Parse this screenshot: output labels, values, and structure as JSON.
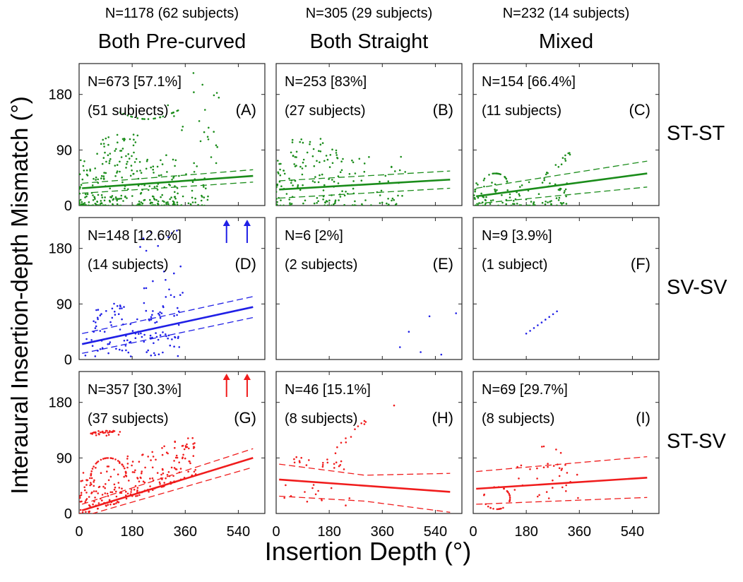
{
  "chart_data": {
    "type": "scatter",
    "xlabel": "Insertion Depth (°)",
    "ylabel": "Interaural Insertion-depth Mismatch (°)",
    "xlim": [
      0,
      630
    ],
    "ylim": [
      0,
      230
    ],
    "xticks": [
      0,
      180,
      360,
      540
    ],
    "yticks": [
      0,
      90,
      180
    ],
    "grid": false,
    "columns": [
      {
        "title": "Both Pre-curved",
        "count": "N=1178 (62 subjects)"
      },
      {
        "title": "Both Straight",
        "count": "N=305 (29 subjects)"
      },
      {
        "title": "Mixed",
        "count": "N=232 (14 subjects)"
      }
    ],
    "rows": [
      {
        "label": "ST-ST",
        "color": "#1a8c1a"
      },
      {
        "label": "SV-SV",
        "color": "#1f1fe6"
      },
      {
        "label": "ST-SV",
        "color": "#f01c1c"
      }
    ],
    "panels": [
      {
        "letter": "(A)",
        "n_text": "N=673 [57.1%]",
        "subjects_text": "(51 subjects)",
        "n": 673,
        "pct": 57.1,
        "subjects": 51,
        "fit": [
          [
            10,
            28
          ],
          [
            590,
            48
          ]
        ],
        "ci_upper": [
          [
            10,
            36
          ],
          [
            590,
            58
          ]
        ],
        "ci_lower": [
          [
            10,
            20
          ],
          [
            590,
            38
          ]
        ],
        "up_arrows": []
      },
      {
        "letter": "(B)",
        "n_text": "N=253 [83%]",
        "subjects_text": "(27 subjects)",
        "n": 253,
        "pct": 83,
        "subjects": 27,
        "fit": [
          [
            10,
            26
          ],
          [
            590,
            42
          ]
        ],
        "ci_upper": [
          [
            10,
            40
          ],
          [
            590,
            56
          ]
        ],
        "ci_lower": [
          [
            10,
            12
          ],
          [
            590,
            28
          ]
        ],
        "up_arrows": []
      },
      {
        "letter": "(C)",
        "n_text": "N=154 [66.4%]",
        "subjects_text": "(11 subjects)",
        "n": 154,
        "pct": 66.4,
        "subjects": 11,
        "fit": [
          [
            10,
            15
          ],
          [
            590,
            52
          ]
        ],
        "ci_upper": [
          [
            10,
            28
          ],
          [
            590,
            72
          ]
        ],
        "ci_lower": [
          [
            10,
            3
          ],
          [
            590,
            30
          ]
        ],
        "up_arrows": []
      },
      {
        "letter": "(D)",
        "n_text": "N=148 [12.6%]",
        "subjects_text": "(14 subjects)",
        "n": 148,
        "pct": 12.6,
        "subjects": 14,
        "fit": [
          [
            10,
            25
          ],
          [
            590,
            85
          ]
        ],
        "ci_upper": [
          [
            10,
            42
          ],
          [
            590,
            102
          ]
        ],
        "ci_lower": [
          [
            10,
            10
          ],
          [
            590,
            68
          ]
        ],
        "up_arrows": [
          500,
          570
        ]
      },
      {
        "letter": "(E)",
        "n_text": "N=6 [2%]",
        "subjects_text": "(2 subjects)",
        "n": 6,
        "pct": 2,
        "subjects": 2,
        "fit": null,
        "ci_upper": null,
        "ci_lower": null,
        "up_arrows": []
      },
      {
        "letter": "(F)",
        "n_text": "N=9 [3.9%]",
        "subjects_text": "(1 subject)",
        "n": 9,
        "pct": 3.9,
        "subjects": 1,
        "fit": null,
        "ci_upper": null,
        "ci_lower": null,
        "up_arrows": []
      },
      {
        "letter": "(G)",
        "n_text": "N=357 [30.3%]",
        "subjects_text": "(37 subjects)",
        "n": 357,
        "pct": 30.3,
        "subjects": 37,
        "fit": [
          [
            10,
            5
          ],
          [
            590,
            90
          ]
        ],
        "ci_upper": [
          [
            10,
            15
          ],
          [
            590,
            105
          ]
        ],
        "ci_lower": [
          [
            10,
            -5
          ],
          [
            590,
            75
          ]
        ],
        "up_arrows": [
          500,
          570
        ]
      },
      {
        "letter": "(H)",
        "n_text": "N=46 [15.1%]",
        "subjects_text": "(8 subjects)",
        "n": 46,
        "pct": 15.1,
        "subjects": 8,
        "fit": [
          [
            10,
            55
          ],
          [
            590,
            35
          ]
        ],
        "ci_upper": [
          [
            10,
            80
          ],
          [
            300,
            62
          ],
          [
            590,
            65
          ]
        ],
        "ci_lower": [
          [
            10,
            28
          ],
          [
            300,
            20
          ],
          [
            590,
            2
          ]
        ],
        "up_arrows": []
      },
      {
        "letter": "(I)",
        "n_text": "N=69 [29.7%]",
        "subjects_text": "(8 subjects)",
        "n": 69,
        "pct": 29.7,
        "subjects": 8,
        "fit": [
          [
            10,
            40
          ],
          [
            590,
            58
          ]
        ],
        "ci_upper": [
          [
            10,
            68
          ],
          [
            590,
            92
          ]
        ],
        "ci_lower": [
          [
            10,
            15
          ],
          [
            590,
            26
          ]
        ],
        "up_arrows": []
      }
    ]
  }
}
